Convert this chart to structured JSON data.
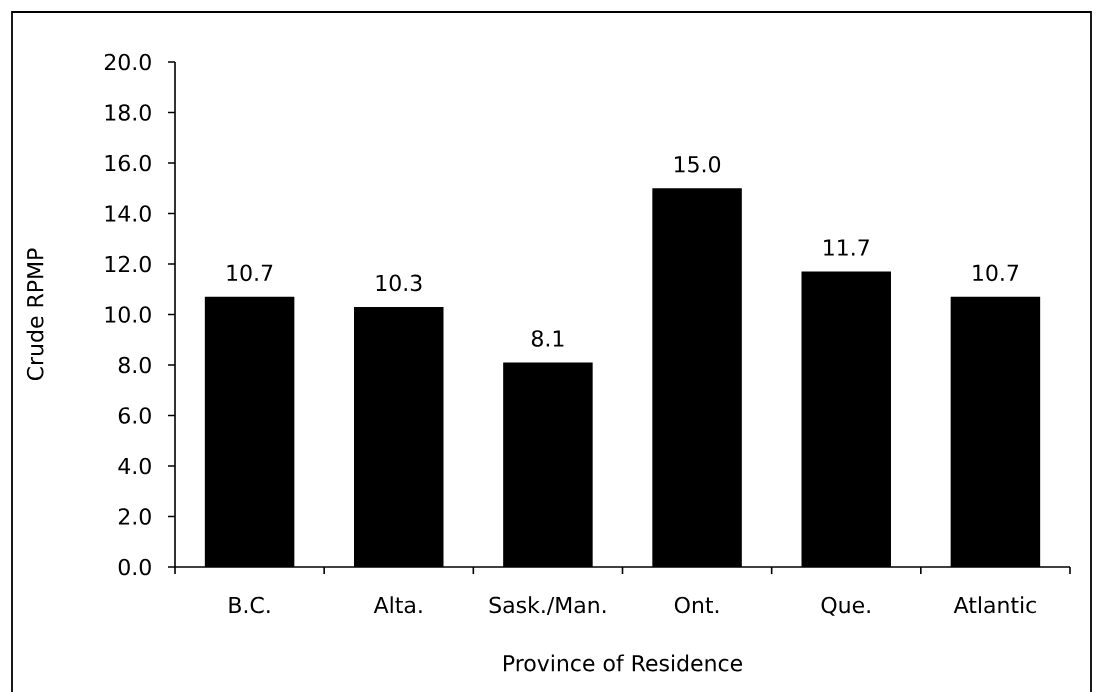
{
  "chart_data": {
    "type": "bar",
    "xlabel": "Province of Residence",
    "ylabel": "Crude RPMP",
    "categories": [
      "B.C.",
      "Alta.",
      "Sask./Man.",
      "Ont.",
      "Que.",
      "Atlantic"
    ],
    "values": [
      10.7,
      10.3,
      8.1,
      15.0,
      11.7,
      10.7
    ],
    "value_labels": [
      "10.7",
      "10.3",
      "8.1",
      "15.0",
      "11.7",
      "10.7"
    ],
    "color": "#000000",
    "ylim": [
      0,
      20
    ],
    "yticks": [
      {
        "value": 0,
        "label": "0.0"
      },
      {
        "value": 2,
        "label": "2.0"
      },
      {
        "value": 4,
        "label": "4.0"
      },
      {
        "value": 6,
        "label": "6.0"
      },
      {
        "value": 8,
        "label": "8.0"
      },
      {
        "value": 10,
        "label": "10.0"
      },
      {
        "value": 12,
        "label": "12.0"
      },
      {
        "value": 14,
        "label": "14.0"
      },
      {
        "value": 16,
        "label": "16.0"
      },
      {
        "value": 18,
        "label": "18.0"
      },
      {
        "value": 20,
        "label": "20.0"
      }
    ]
  }
}
